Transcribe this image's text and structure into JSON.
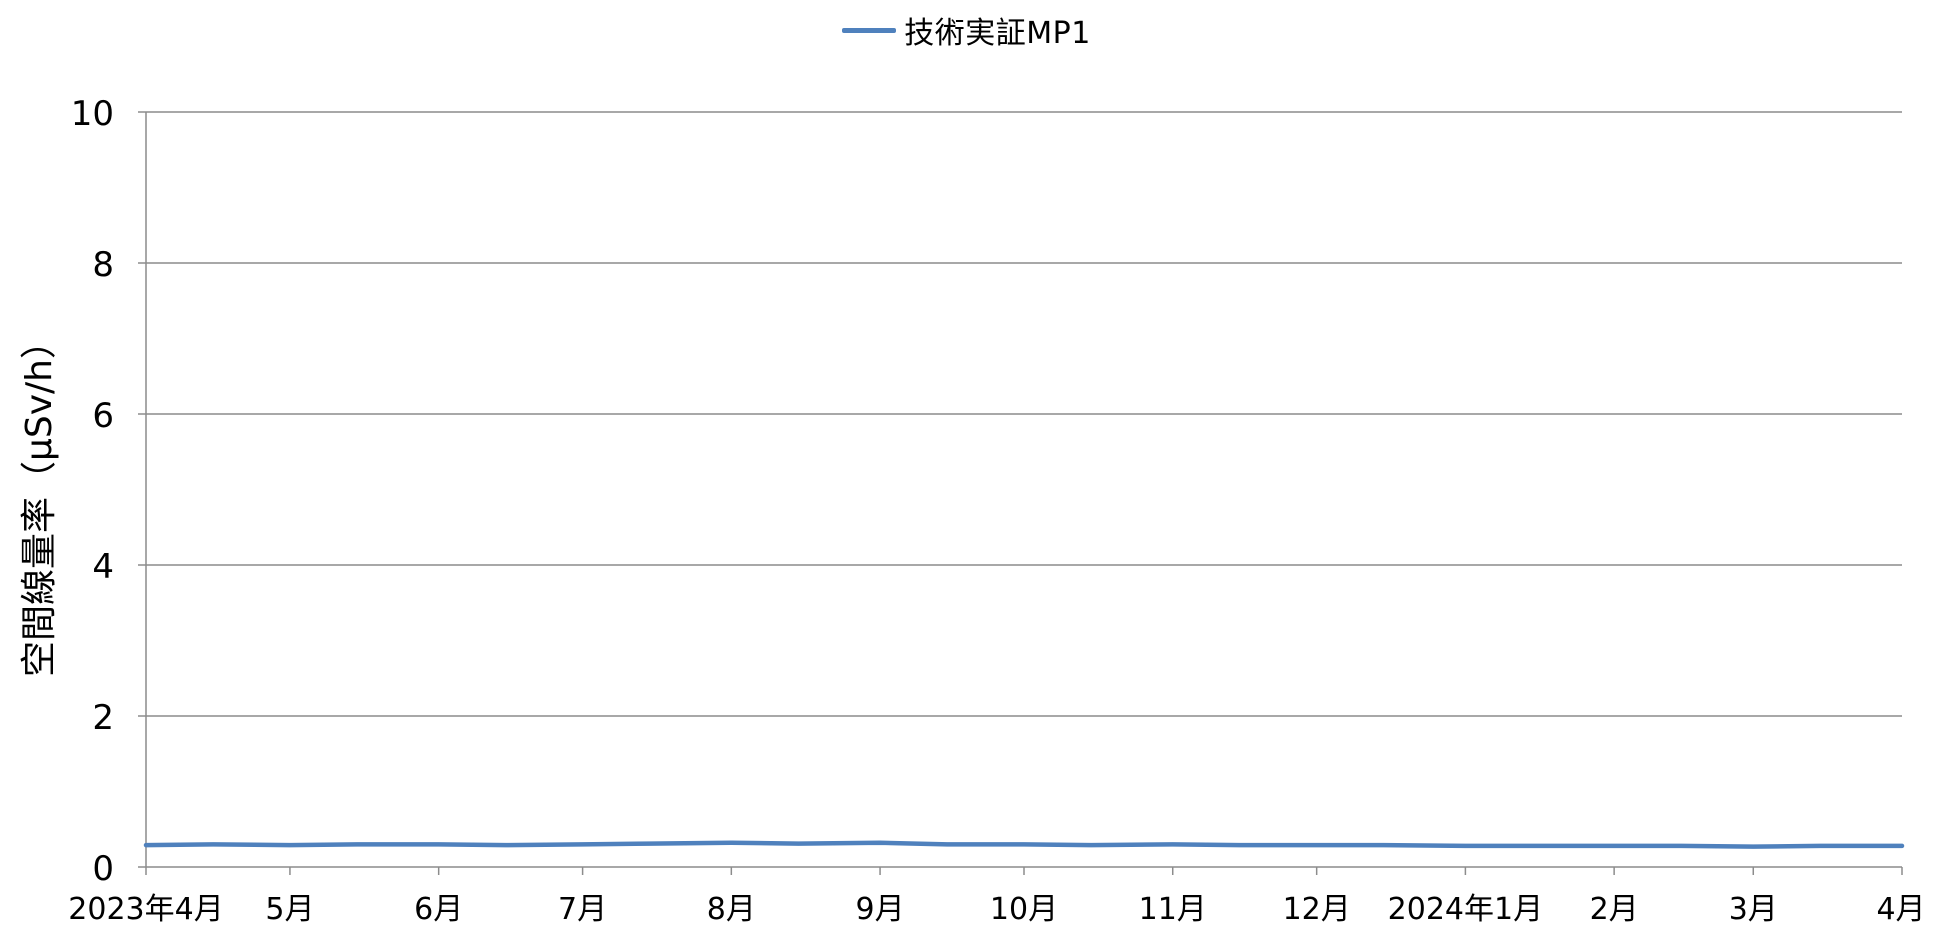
{
  "chart_data": {
    "type": "line",
    "title": "",
    "xlabel": "",
    "ylabel": "空間線量率（μSv/h）",
    "ylim": [
      0,
      10
    ],
    "yticks": [
      0,
      2,
      4,
      6,
      8,
      10
    ],
    "xlim": [
      "2023-04-01",
      "2024-04-01"
    ],
    "xtick_labels": [
      "2023年4月",
      "5月",
      "6月",
      "7月",
      "8月",
      "9月",
      "10月",
      "11月",
      "12月",
      "2024年1月",
      "2月",
      "3月",
      "4月"
    ],
    "grid": true,
    "legend_position": "top",
    "series": [
      {
        "name": "技術実証MP1",
        "color": "#4F81BD",
        "x": [
          "2023-04-01",
          "2023-04-15",
          "2023-05-01",
          "2023-05-15",
          "2023-06-01",
          "2023-06-15",
          "2023-07-01",
          "2023-07-15",
          "2023-08-01",
          "2023-08-15",
          "2023-09-01",
          "2023-09-15",
          "2023-10-01",
          "2023-10-15",
          "2023-11-01",
          "2023-11-15",
          "2023-12-01",
          "2023-12-15",
          "2024-01-01",
          "2024-01-15",
          "2024-02-01",
          "2024-02-15",
          "2024-03-01",
          "2024-03-15",
          "2024-04-01"
        ],
        "values": [
          0.29,
          0.3,
          0.29,
          0.3,
          0.3,
          0.29,
          0.3,
          0.31,
          0.32,
          0.31,
          0.32,
          0.3,
          0.3,
          0.29,
          0.3,
          0.29,
          0.29,
          0.29,
          0.28,
          0.28,
          0.28,
          0.28,
          0.27,
          0.28,
          0.28
        ]
      }
    ]
  }
}
